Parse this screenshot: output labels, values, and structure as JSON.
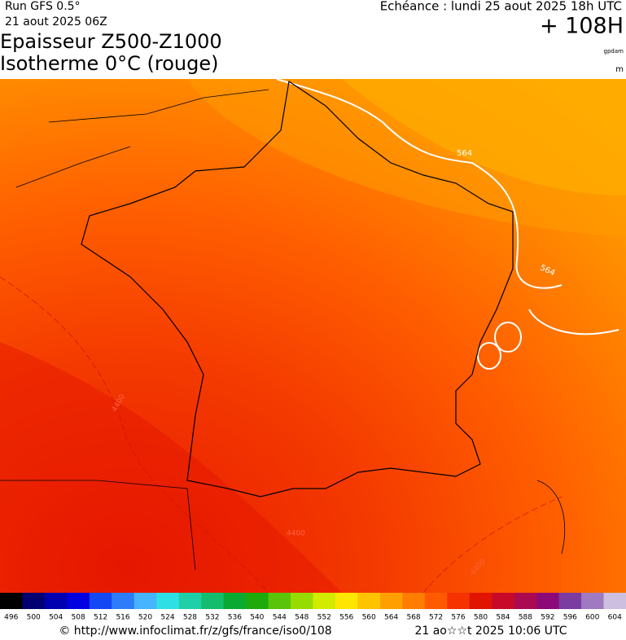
{
  "header": {
    "run": "Run GFS 0.5°",
    "run_date": "21 aout 2025 06Z",
    "valid": "Echéance : lundi 25 aout 2025 18h UTC",
    "lead": "+ 108H",
    "title_line1": "Epaisseur Z500-Z1000",
    "title_line2": "Isotherme 0°C (rouge)",
    "unit_thickness": "gpdam",
    "unit_iso": "m"
  },
  "contour_labels": [
    "564",
    "564",
    "4400",
    "4400",
    "4400"
  ],
  "colorbar": {
    "labels": [
      "496",
      "500",
      "504",
      "508",
      "512",
      "516",
      "520",
      "524",
      "528",
      "532",
      "536",
      "540",
      "544",
      "548",
      "552",
      "556",
      "560",
      "564",
      "568",
      "572",
      "576",
      "580",
      "584",
      "588",
      "592",
      "596",
      "600",
      "604"
    ],
    "colors": [
      "#000000",
      "#000070",
      "#0000b0",
      "#0000e0",
      "#1448f5",
      "#2e7cfa",
      "#46b4ff",
      "#2ee0e6",
      "#1ecfa8",
      "#14bd6e",
      "#0aaa32",
      "#1eaa0a",
      "#5ac40a",
      "#96dc00",
      "#d2eb00",
      "#ffe600",
      "#ffc300",
      "#ffa000",
      "#ff7d00",
      "#ff5a00",
      "#f53200",
      "#e01400",
      "#c80a28",
      "#aa0a50",
      "#8c0a78",
      "#7a3ca0",
      "#a07ac0",
      "#cdbfe0"
    ]
  },
  "footer": {
    "url": "© http://www.infoclimat.fr/z/gfs/france/iso0/108",
    "timestamp": "21 ao☆☆t 2025 10:06 UTC"
  }
}
